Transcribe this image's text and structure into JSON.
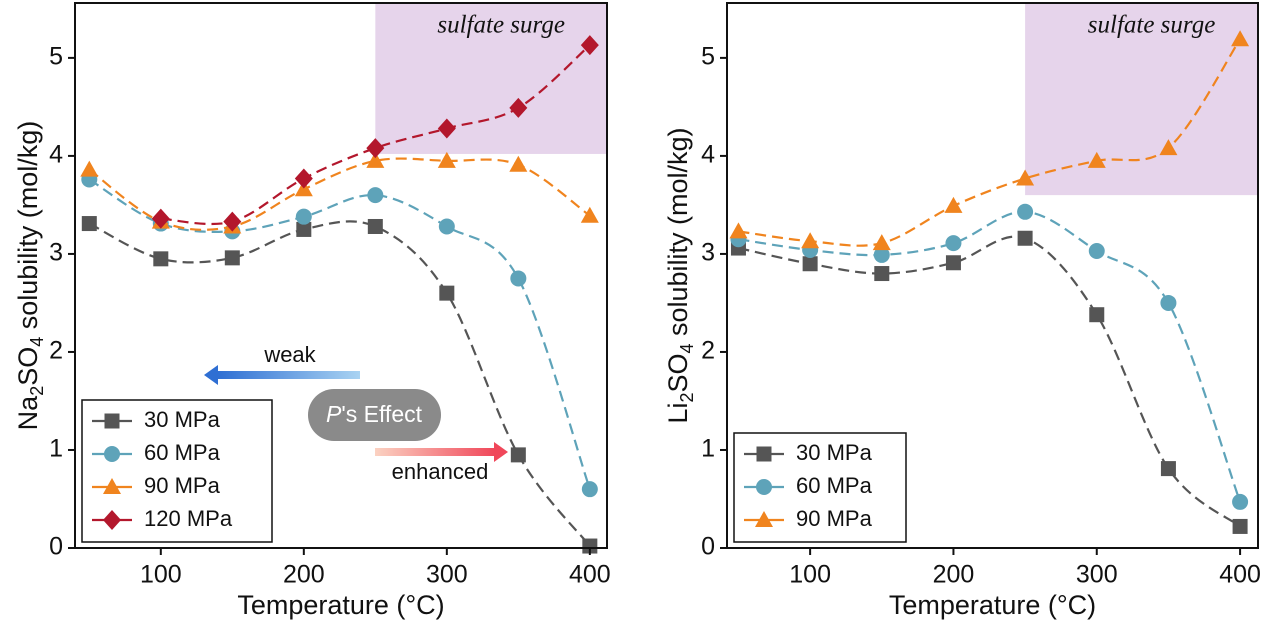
{
  "chart_data": [
    {
      "type": "line",
      "xlabel": "Temperature (°C)",
      "ylabel": [
        "Na",
        "2",
        "SO",
        "4",
        " solubility (mol/kg)"
      ],
      "x": [
        50,
        100,
        150,
        200,
        250,
        300,
        350,
        400
      ],
      "series": [
        {
          "name": "30 MPa",
          "color": "#555555",
          "marker": "square",
          "values": [
            3.31,
            2.95,
            2.96,
            3.25,
            3.28,
            2.6,
            0.95,
            0.02
          ]
        },
        {
          "name": "60 MPa",
          "color": "#5ea3b9",
          "marker": "circle",
          "values": [
            3.76,
            3.31,
            3.23,
            3.38,
            3.6,
            3.28,
            2.75,
            0.6
          ]
        },
        {
          "name": "90 MPa",
          "color": "#f0841e",
          "marker": "triangle",
          "values": [
            3.86,
            3.33,
            3.28,
            3.66,
            3.95,
            3.95,
            3.91,
            3.39
          ]
        },
        {
          "name": "120 MPa",
          "color": "#b3172c",
          "marker": "diamond",
          "values": [
            null,
            3.36,
            3.33,
            3.77,
            4.08,
            4.28,
            4.49,
            5.13
          ]
        }
      ],
      "xlim": [
        40,
        412
      ],
      "ylim": [
        0,
        5.56
      ],
      "xticks": [
        100,
        200,
        300,
        400
      ],
      "yticks": [
        0,
        1,
        2,
        3,
        4,
        5
      ],
      "legend": "lower left",
      "shaded_region": {
        "label": "sulfate surge",
        "x": [
          250,
          412
        ],
        "y": [
          4.02,
          5.56
        ],
        "color": "#e6d4eb"
      },
      "effect_label": [
        "P",
        "'s Effect"
      ],
      "weak_label": "weak",
      "enhanced_label": "enhanced"
    },
    {
      "type": "line",
      "xlabel": "Temperature (°C)",
      "ylabel": [
        "Li",
        "2",
        "SO",
        "4",
        " solubility (mol/kg)"
      ],
      "x": [
        50,
        100,
        150,
        200,
        250,
        300,
        350,
        400
      ],
      "series": [
        {
          "name": "30 MPa",
          "color": "#555555",
          "marker": "square",
          "values": [
            3.06,
            2.9,
            2.8,
            2.91,
            3.16,
            2.38,
            0.81,
            0.22
          ]
        },
        {
          "name": "60 MPa",
          "color": "#5ea3b9",
          "marker": "circle",
          "values": [
            3.15,
            3.04,
            2.99,
            3.11,
            3.43,
            3.03,
            2.5,
            0.47
          ]
        },
        {
          "name": "90 MPa",
          "color": "#f0841e",
          "marker": "triangle",
          "values": [
            3.23,
            3.13,
            3.11,
            3.49,
            3.77,
            3.95,
            4.08,
            5.19
          ]
        }
      ],
      "xlim": [
        42,
        412.5
      ],
      "ylim": [
        0,
        5.56
      ],
      "xticks": [
        100,
        200,
        300,
        400
      ],
      "yticks": [
        0,
        1,
        2,
        3,
        4,
        5
      ],
      "legend": "lower left",
      "shaded_region": {
        "label": "sulfate surge",
        "x": [
          250,
          412.5
        ],
        "y": [
          3.6,
          5.56
        ],
        "color": "#e6d4eb"
      }
    }
  ]
}
